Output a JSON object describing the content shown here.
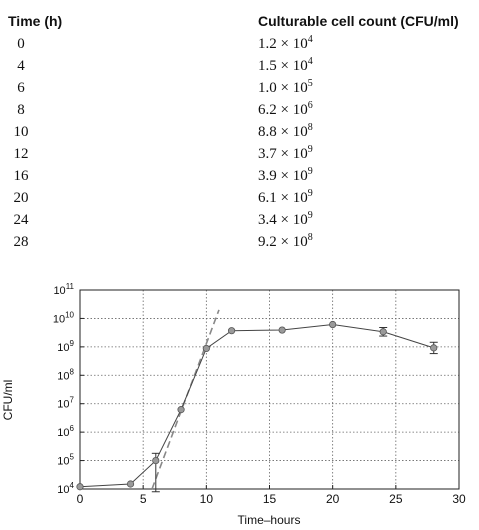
{
  "table": {
    "headers": [
      "Time (h)",
      "Culturable cell count (CFU/ml)"
    ],
    "rows": [
      {
        "time": "0",
        "mantissa": "1.2 × 10",
        "exp": "4"
      },
      {
        "time": "4",
        "mantissa": "1.5 × 10",
        "exp": "4"
      },
      {
        "time": "6",
        "mantissa": "1.0 × 10",
        "exp": "5"
      },
      {
        "time": "8",
        "mantissa": "6.2 × 10",
        "exp": "6"
      },
      {
        "time": "10",
        "mantissa": "8.8 × 10",
        "exp": "8"
      },
      {
        "time": "12",
        "mantissa": "3.7 × 10",
        "exp": "9"
      },
      {
        "time": "16",
        "mantissa": "3.9 × 10",
        "exp": "9"
      },
      {
        "time": "20",
        "mantissa": "6.1 × 10",
        "exp": "9"
      },
      {
        "time": "24",
        "mantissa": "3.4 × 10",
        "exp": "9"
      },
      {
        "time": "28",
        "mantissa": "9.2 × 10",
        "exp": "8"
      }
    ]
  },
  "chart_data": {
    "type": "line",
    "title": "",
    "xlabel": "Time–hours",
    "ylabel": "CFU/ml",
    "xlim": [
      0,
      30
    ],
    "ylim": [
      10000,
      100000000000
    ],
    "yscale": "log",
    "xticks": [
      "0",
      "5",
      "10",
      "15",
      "20",
      "25",
      "30"
    ],
    "ytick_exponents": [
      "4",
      "5",
      "6",
      "7",
      "8",
      "9",
      "10",
      "11"
    ],
    "ytick_base": "10",
    "grid": true,
    "x": [
      0,
      4,
      6,
      8,
      10,
      12,
      16,
      20,
      24,
      28
    ],
    "y": [
      12000,
      15000,
      100000,
      6200000,
      880000000,
      3700000000,
      3900000000,
      6100000000,
      3400000000,
      920000000
    ],
    "error_bars": [
      {
        "x": 6,
        "low": 8000,
        "high": 180000
      },
      {
        "x": 24,
        "low": 2400000000,
        "high": 4800000000
      },
      {
        "x": 28,
        "low": 580000000,
        "high": 1450000000
      }
    ],
    "trend_line": {
      "x": [
        5.7,
        11
      ],
      "y": [
        10000,
        20000000000
      ]
    },
    "colors": {
      "marker": "#9a9a9a",
      "line": "#444444",
      "trend": "#888888",
      "grid": "#666666"
    }
  }
}
